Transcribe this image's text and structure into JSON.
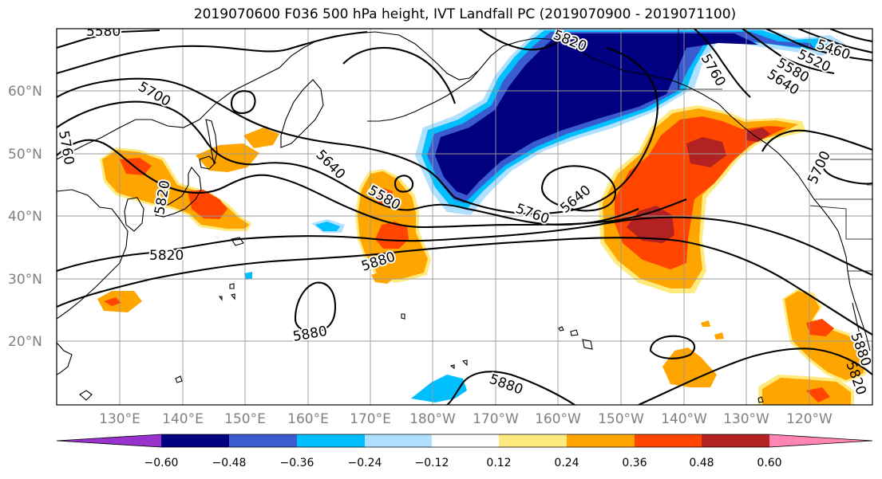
{
  "title": "2019070600 F036 500 hPa height, IVT Landfall PC (2019070900 - 2019071100)",
  "map": {
    "latitude_labels": [
      "60°N",
      "50°N",
      "40°N",
      "30°N",
      "20°N"
    ],
    "longitude_labels": [
      "130°E",
      "140°E",
      "150°E",
      "160°E",
      "170°E",
      "180°W",
      "170°W",
      "160°W",
      "150°W",
      "140°W",
      "130°W",
      "120°W"
    ],
    "contour_labels": [
      "5580",
      "5700",
      "5760",
      "5820",
      "5640",
      "5580",
      "5880",
      "5760",
      "5640",
      "5880",
      "5820",
      "5760",
      "5820",
      "5460",
      "5520",
      "5580",
      "5640",
      "5700",
      "5880",
      "5880",
      "5820"
    ]
  },
  "colorbar": {
    "ticks": [
      "−0.60",
      "−0.48",
      "−0.36",
      "−0.24",
      "−0.12",
      "0.12",
      "0.24",
      "0.36",
      "0.48",
      "0.60"
    ],
    "colors": [
      "#9932cc",
      "#000080",
      "#3b5bd1",
      "#00bfff",
      "#b0e0ff",
      "#ffffff",
      "#ffea80",
      "#ffa500",
      "#ff4500",
      "#b22222",
      "#ff85b3"
    ]
  }
}
